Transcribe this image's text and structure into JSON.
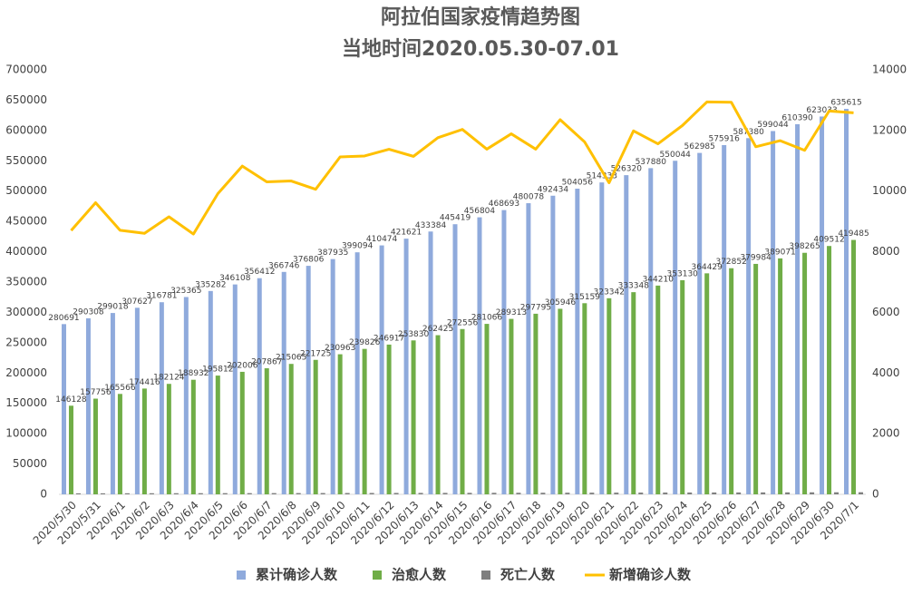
{
  "chart_data": {
    "type": "bar_line",
    "title": "阿拉伯国家疫情趋势图",
    "subtitle": "当地时间2020.05.30-07.01",
    "categories": [
      "2020/5/30",
      "2020/5/31",
      "2020/6/1",
      "2020/6/2",
      "2020/6/3",
      "2020/6/4",
      "2020/6/5",
      "2020/6/6",
      "2020/6/7",
      "2020/6/8",
      "2020/6/9",
      "2020/6/10",
      "2020/6/11",
      "2020/6/12",
      "2020/6/13",
      "2020/6/14",
      "2020/6/15",
      "2020/6/16",
      "2020/6/17",
      "2020/6/18",
      "2020/6/19",
      "2020/6/20",
      "2020/6/21",
      "2020/6/22",
      "2020/6/23",
      "2020/6/24",
      "2020/6/25",
      "2020/6/26",
      "2020/6/27",
      "2020/6/28",
      "2020/6/29",
      "2020/6/30",
      "2020/7/1"
    ],
    "series": [
      {
        "name": "累计确诊人数",
        "type": "bar",
        "color": "#8faadc",
        "labels": true,
        "values": [
          280691,
          290308,
          299018,
          307627,
          316781,
          325365,
          335282,
          346108,
          356412,
          366746,
          376806,
          387935,
          399094,
          410474,
          421621,
          433384,
          445419,
          456804,
          468693,
          480078,
          492434,
          504056,
          514333,
          526320,
          537880,
          550044,
          562985,
          575916,
          587380,
          599044,
          610390,
          623033,
          635615
        ]
      },
      {
        "name": "治愈人数",
        "type": "bar",
        "color": "#70ad47",
        "labels": true,
        "values": [
          146128,
          157756,
          165566,
          174416,
          182124,
          188932,
          195812,
          202006,
          207867,
          215065,
          221725,
          230963,
          239826,
          246917,
          253830,
          262425,
          272556,
          281066,
          289313,
          297795,
          305946,
          315159,
          323342,
          333348,
          344210,
          353130,
          364429,
          372852,
          379984,
          389071,
          398265,
          409512,
          419485
        ]
      },
      {
        "name": "死亡人数",
        "type": "bar",
        "color": "#7f7f7f",
        "labels": false,
        "values": [
          1649,
          1698,
          1752,
          1804,
          1849,
          1897,
          1941,
          1981,
          2026,
          2073,
          2121,
          2170,
          2220,
          2271,
          2320,
          2371,
          2430,
          2490,
          2547,
          2600,
          2665,
          2724,
          2783,
          2845,
          2906,
          2966,
          3032,
          3096,
          3164,
          3231,
          3291,
          3357,
          3412
        ]
      },
      {
        "name": "新增确诊人数",
        "type": "line",
        "axis": "y2",
        "color": "#ffc000",
        "labels": false,
        "values": [
          8700,
          9617,
          8710,
          8609,
          9154,
          8584,
          9917,
          10826,
          10304,
          10334,
          10060,
          11129,
          11159,
          11380,
          11147,
          11763,
          12035,
          11385,
          11889,
          11385,
          12356,
          11622,
          10277,
          11987,
          11560,
          12164,
          12941,
          12931,
          11464,
          11664,
          11346,
          12643,
          12582
        ]
      }
    ],
    "ylim": [
      0,
      700000
    ],
    "yticks": [
      0,
      50000,
      100000,
      150000,
      200000,
      250000,
      300000,
      350000,
      400000,
      450000,
      500000,
      550000,
      600000,
      650000,
      700000
    ],
    "y2lim": [
      0,
      14000
    ],
    "y2ticks": [
      0,
      2000,
      4000,
      6000,
      8000,
      10000,
      12000,
      14000
    ],
    "legend": "bottom"
  }
}
